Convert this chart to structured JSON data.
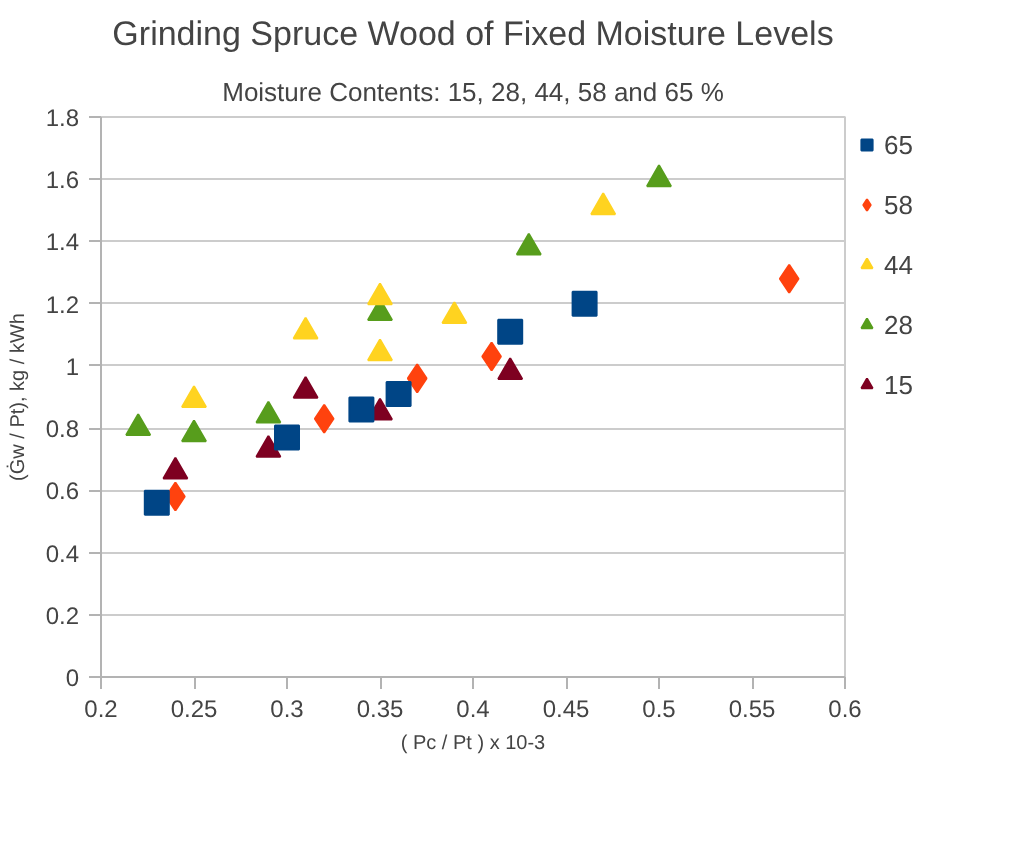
{
  "chart_data": {
    "type": "scatter",
    "title": "Grinding Spruce Wood of Fixed Moisture Levels",
    "subtitle": "Moisture Contents: 15, 28, 44, 58 and 65 %",
    "xlabel": "( Pc / Pt ) x 10-3",
    "ylabel": "(Ġw / Pt), kg / kWh",
    "xlim": [
      0.2,
      0.6
    ],
    "xticks": [
      0.2,
      0.25,
      0.3,
      0.35,
      0.4,
      0.45,
      0.5,
      0.55,
      0.6
    ],
    "ylim": [
      0,
      1.8
    ],
    "yticks": [
      0,
      0.2,
      0.4,
      0.6,
      0.8,
      1,
      1.2,
      1.4,
      1.6,
      1.8
    ],
    "grid": "y",
    "legend": "right",
    "series": [
      {
        "name": "65",
        "color": "#004586",
        "marker": "square",
        "x": [
          0.23,
          0.3,
          0.34,
          0.36,
          0.42,
          0.46
        ],
        "values": [
          0.56,
          0.77,
          0.86,
          0.91,
          1.11,
          1.2
        ]
      },
      {
        "name": "58",
        "color": "#ff420e",
        "marker": "diamond",
        "x": [
          0.24,
          0.32,
          0.37,
          0.41,
          0.57
        ],
        "values": [
          0.58,
          0.83,
          0.96,
          1.03,
          1.28
        ]
      },
      {
        "name": "44",
        "color": "#ffd320",
        "marker": "triangle",
        "x": [
          0.25,
          0.31,
          0.35,
          0.35,
          0.39,
          0.47
        ],
        "values": [
          0.89,
          1.11,
          1.22,
          1.04,
          1.16,
          1.51
        ]
      },
      {
        "name": "28",
        "color": "#579d1c",
        "marker": "triangle",
        "x": [
          0.22,
          0.25,
          0.29,
          0.35,
          0.43,
          0.5
        ],
        "values": [
          0.8,
          0.78,
          0.84,
          1.17,
          1.38,
          1.6
        ]
      },
      {
        "name": "15",
        "color": "#7e0021",
        "marker": "triangle",
        "x": [
          0.24,
          0.29,
          0.31,
          0.35,
          0.42
        ],
        "values": [
          0.66,
          0.73,
          0.92,
          0.85,
          0.98
        ]
      }
    ]
  }
}
